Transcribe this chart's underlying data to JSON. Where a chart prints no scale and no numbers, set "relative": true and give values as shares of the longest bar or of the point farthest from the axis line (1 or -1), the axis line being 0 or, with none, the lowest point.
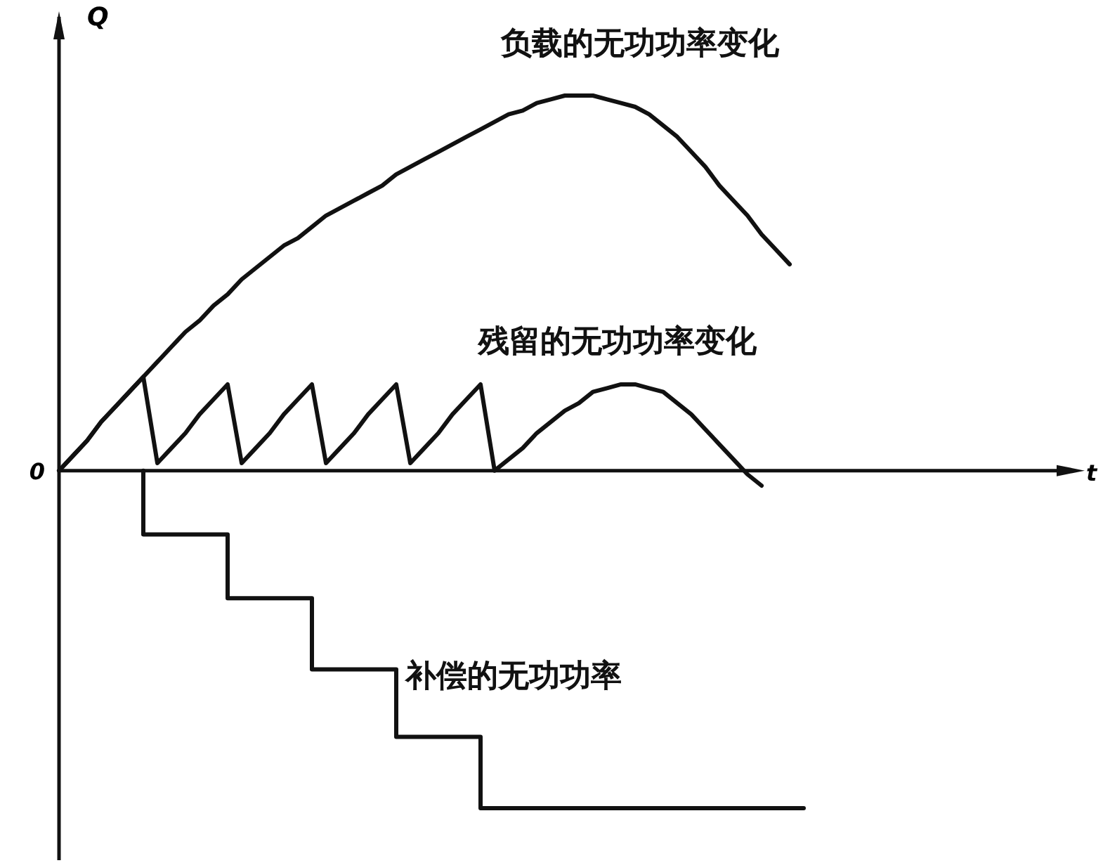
{
  "chart_data": {
    "type": "line",
    "relative": true,
    "ylabel": "Q",
    "annotations": [
      "0",
      "t"
    ],
    "categories": [
      null,
      null,
      null,
      null,
      null,
      null,
      null,
      null,
      null,
      null,
      null,
      null,
      null,
      null,
      null,
      null,
      null,
      null,
      null,
      null,
      null,
      null,
      null,
      null,
      null,
      null,
      null,
      null,
      null,
      null,
      null,
      null,
      null,
      null,
      null,
      null,
      null,
      null,
      null,
      null,
      null,
      null,
      null,
      null,
      null,
      null,
      null,
      null,
      null,
      null,
      null,
      null,
      null,
      null
    ],
    "series": [
      {
        "name": "负载的无功功率变化",
        "color": "#111111",
        "type": "line",
        "values": [
          0,
          0.04,
          0.08,
          0.13,
          0.17,
          0.21,
          0.25,
          0.29,
          0.33,
          0.37,
          0.4,
          0.44,
          0.47,
          0.51,
          0.54,
          0.57,
          0.6,
          0.62,
          0.65,
          0.68,
          0.7,
          0.72,
          0.74,
          0.76,
          0.79,
          0.81,
          0.83,
          0.85,
          0.87,
          0.89,
          0.91,
          0.93,
          0.95,
          0.96,
          0.98,
          0.99,
          1.0,
          1.0,
          1.0,
          0.99,
          0.98,
          0.97,
          0.95,
          0.92,
          0.89,
          0.85,
          0.81,
          0.76,
          0.72,
          0.68,
          0.63,
          0.59,
          0.55,
          null
        ]
      },
      {
        "name": "残留的无功功率变化",
        "color": "#111111",
        "type": "line",
        "values": [
          0,
          0.04,
          0.08,
          0.13,
          0.17,
          0.21,
          0.25,
          0.02,
          0.06,
          0.1,
          0.15,
          0.19,
          0.23,
          0.02,
          0.06,
          0.1,
          0.15,
          0.19,
          0.23,
          0.02,
          0.06,
          0.1,
          0.15,
          0.19,
          0.23,
          0.02,
          0.06,
          0.1,
          0.15,
          0.19,
          0.23,
          0,
          0.03,
          0.06,
          0.1,
          0.13,
          0.16,
          0.18,
          0.21,
          0.22,
          0.23,
          0.23,
          0.22,
          0.21,
          0.18,
          0.15,
          0.11,
          0.07,
          0.03,
          -0.01,
          -0.04,
          null,
          null,
          null
        ]
      },
      {
        "name": "补偿的无功功率",
        "color": "#111111",
        "type": "step",
        "values": [
          null,
          null,
          null,
          null,
          null,
          null,
          0,
          -0.17,
          -0.17,
          -0.17,
          -0.17,
          -0.17,
          -0.17,
          -0.34,
          -0.34,
          -0.34,
          -0.34,
          -0.34,
          -0.34,
          -0.53,
          -0.53,
          -0.53,
          -0.53,
          -0.53,
          -0.53,
          -0.71,
          -0.71,
          -0.71,
          -0.71,
          -0.71,
          -0.71,
          -0.9,
          -0.9,
          -0.9,
          -0.9,
          -0.9,
          -0.9,
          -0.9,
          -0.9,
          -0.9,
          -0.9,
          -0.9,
          -0.9,
          -0.9,
          -0.9,
          -0.9,
          -0.9,
          -0.9,
          -0.9,
          -0.9,
          -0.9,
          -0.9,
          -0.9,
          -0.9
        ]
      }
    ]
  }
}
